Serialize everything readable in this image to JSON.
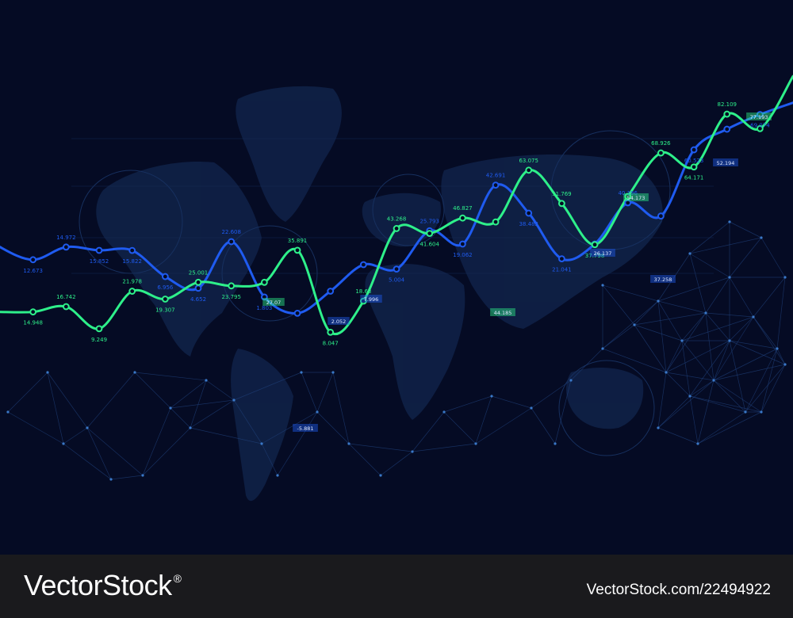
{
  "chart_data": {
    "type": "line",
    "title": "",
    "xlabel": "",
    "ylabel": "",
    "ylim": [
      -15,
      98
    ],
    "grid": false,
    "series": [
      {
        "color": "#2ef08a",
        "x": [
          0,
          1,
          2,
          3,
          4,
          5,
          6,
          7,
          8,
          9,
          10,
          11,
          12,
          13,
          14,
          15,
          16,
          17,
          18,
          19,
          20,
          21,
          22,
          23,
          24
        ],
        "values": [
          14.948,
          14.948,
          16.742,
          9.249,
          21.978,
          19.307,
          25.001,
          23.795,
          25.0,
          35.891,
          8.047,
          18.63,
          43.268,
          41.604,
          46.827,
          45.5,
          63.075,
          51.769,
          37.798,
          54.173,
          68.926,
          64.171,
          82.109,
          77.193,
          95.0
        ],
        "labels": [
          "",
          "14.948",
          "16.742",
          "9.249",
          "21.978",
          "19.307",
          "25.001",
          "23.795",
          "",
          "35.891",
          "8.047",
          "18.63",
          "43.268",
          "41.604",
          "46.827",
          "",
          "63.075",
          "51.769",
          "37.798",
          "",
          "68.926",
          "64.171",
          "82.109",
          "",
          ""
        ]
      },
      {
        "color": "#1f5bf0",
        "x": [
          -0.5,
          0,
          1,
          2,
          3,
          4,
          5,
          6,
          7,
          8,
          9,
          10,
          11,
          12,
          13,
          14,
          15,
          16,
          17,
          18,
          19,
          20,
          21,
          22,
          23,
          24
        ],
        "values": [
          42.0,
          37.0,
          32.673,
          36.972,
          35.852,
          35.822,
          26.956,
          23.0,
          38.808,
          20.0,
          14.5,
          22.0,
          31.0,
          29.5,
          42.5,
          38.0,
          58.0,
          48.482,
          33.0,
          38.0,
          52.0,
          47.5,
          70.0,
          77.0,
          82.0,
          86.0
        ],
        "labels": [
          "",
          "",
          "12.673",
          "14.972",
          "15.852",
          "15.822",
          "6.956",
          "4.652",
          "22.608",
          "1.803",
          "",
          "",
          "",
          "5.004",
          "25.793",
          "19.062",
          "42.691",
          "38.482",
          "21.041",
          "",
          "40.196",
          "",
          "60.523",
          "",
          "69.074",
          ""
        ]
      }
    ],
    "tags": [
      {
        "text": "27.07",
        "color": "#2ef08a"
      },
      {
        "text": "7.996",
        "color": "#1f5bf0"
      },
      {
        "text": "2.052",
        "color": "#1f5bf0"
      },
      {
        "text": "44.185",
        "color": "#2ef08a"
      },
      {
        "text": "26.137",
        "color": "#1f5bf0"
      },
      {
        "text": "54.173",
        "color": "#2ef08a"
      },
      {
        "text": "52.194",
        "color": "#1f5bf0"
      },
      {
        "text": "77.193",
        "color": "#2ef08a"
      },
      {
        "text": "37.258",
        "color": "#1f5bf0"
      },
      {
        "text": "-5.881",
        "color": "#1f5bf0"
      }
    ]
  },
  "colors": {
    "background": "#050b24",
    "map": "#0f2147",
    "network": "#1f3f78",
    "footer": "#1a1a1d"
  },
  "footer": {
    "brand": "VectorStock",
    "registered": "®",
    "code": "VectorStock.com/22494922"
  }
}
